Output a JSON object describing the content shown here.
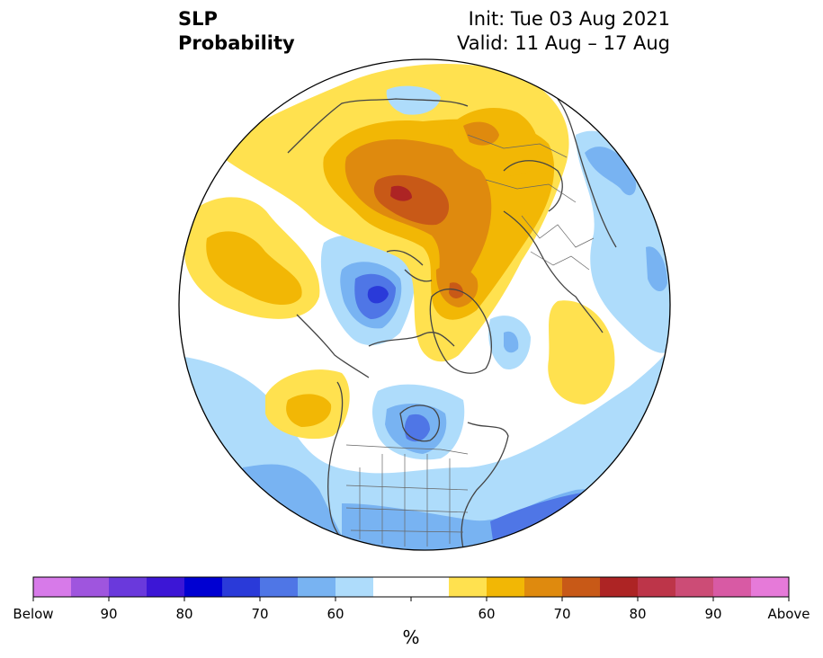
{
  "header": {
    "variable": "SLP",
    "product": "Probability",
    "init": "Init: Tue 03 Aug 2021",
    "valid": "Valid: 11 Aug – 17 Aug"
  },
  "map": {
    "projection": "north-polar-stereographic",
    "region": "Northern Hemisphere",
    "outline_color": "#000000",
    "coastline_color": "#444444"
  },
  "colorbar": {
    "unit": "%",
    "tick_labels": [
      "Below",
      "90",
      "80",
      "70",
      "60",
      "60",
      "70",
      "80",
      "90",
      "Above"
    ],
    "colors": [
      "#d77ae9",
      "#9f55de",
      "#6a39dc",
      "#3c16d6",
      "#0000d2",
      "#2a3ad9",
      "#4f76e6",
      "#78b3f2",
      "#aedcfb",
      "#ffffff",
      "#ffffff",
      "#ffe14f",
      "#f2b705",
      "#df8a0e",
      "#c85917",
      "#ad2424",
      "#bd3549",
      "#cc4c76",
      "#d85aa4",
      "#e67ad9"
    ]
  }
}
